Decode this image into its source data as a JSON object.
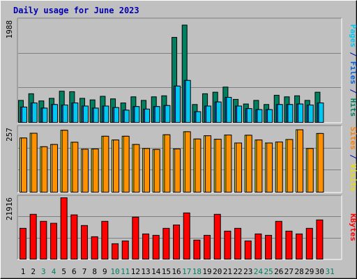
{
  "title": "Daily usage for June 2023",
  "panels": {
    "top": {
      "max_label": "1988",
      "labels": [
        {
          "text": "Pages",
          "color": "#00c8f0"
        },
        {
          "text": " / ",
          "color": "#0000b0"
        },
        {
          "text": "Files",
          "color": "#0060e0"
        },
        {
          "text": " / ",
          "color": "#0000b0"
        },
        {
          "text": "Hits",
          "color": "#008060"
        }
      ]
    },
    "middle": {
      "max_label": "257",
      "labels": [
        {
          "text": "Sites",
          "color": "#ff8000"
        },
        {
          "text": " / ",
          "color": "#0000b0"
        },
        {
          "text": "Visits",
          "color": "#e8e000"
        }
      ]
    },
    "bottom": {
      "max_label": "21916",
      "labels": [
        {
          "text": "KBytes",
          "color": "#ff0000"
        }
      ]
    }
  },
  "colors": {
    "hits": "#008060",
    "files": "#0060e0",
    "pages": "#00c8f0",
    "visits": "#ffff00",
    "sites": "#ff9000",
    "kbytes": "#ff0000",
    "weekday": "#000000",
    "weekend": "#008060"
  },
  "chart_data": {
    "type": "bar",
    "title": "Daily usage for June 2023",
    "categories": [
      "1",
      "2",
      "3",
      "4",
      "5",
      "6",
      "7",
      "8",
      "9",
      "10",
      "11",
      "12",
      "13",
      "14",
      "15",
      "16",
      "17",
      "18",
      "19",
      "20",
      "21",
      "22",
      "23",
      "24",
      "25",
      "26",
      "27",
      "28",
      "29",
      "30",
      "31"
    ],
    "weekend_days": [
      "3",
      "4",
      "10",
      "11",
      "17",
      "18",
      "24",
      "25",
      "31"
    ],
    "panels": [
      {
        "name": "hits-files-pages",
        "ylim": [
          0,
          1988
        ],
        "series": [
          {
            "name": "Hits",
            "values": [
              430,
              560,
              420,
              470,
              610,
              600,
              470,
              440,
              510,
              460,
              380,
              500,
              430,
              500,
              520,
              1660,
              1900,
              350,
              560,
              590,
              690,
              450,
              360,
              430,
              350,
              530,
              500,
              520,
              430,
              590,
              0
            ]
          },
          {
            "name": "Files",
            "values": [
              300,
              380,
              280,
              350,
              340,
              380,
              320,
              280,
              320,
              290,
              240,
              310,
              260,
              310,
              330,
              710,
              820,
              210,
              320,
              400,
              490,
              320,
              270,
              250,
              250,
              350,
              350,
              360,
              340,
              380,
              0
            ]
          },
          {
            "name": "Pages",
            "values": [
              300,
              380,
              280,
              350,
              340,
              380,
              320,
              280,
              320,
              290,
              240,
              310,
              260,
              310,
              330,
              710,
              820,
              210,
              320,
              400,
              490,
              320,
              270,
              250,
              250,
              350,
              350,
              360,
              340,
              380,
              0
            ]
          }
        ]
      },
      {
        "name": "visits-sites",
        "ylim": [
          0,
          257
        ],
        "series": [
          {
            "name": "Visits",
            "values": [
              217,
              236,
              182,
              191,
              248,
              200,
              172,
              173,
              224,
              209,
              224,
              191,
              175,
              171,
              230,
              173,
              242,
              213,
              226,
              212,
              229,
              197,
              228,
              209,
              197,
              201,
              211,
              250,
              175,
              235,
              0
            ]
          },
          {
            "name": "Sites",
            "values": [
              217,
              236,
              182,
              191,
              248,
              200,
              172,
              173,
              224,
              209,
              224,
              191,
              175,
              171,
              230,
              173,
              242,
              213,
              226,
              212,
              229,
              197,
              228,
              209,
              197,
              201,
              211,
              250,
              175,
              235,
              0
            ]
          }
        ]
      },
      {
        "name": "kbytes",
        "ylim": [
          0,
          21916
        ],
        "series": [
          {
            "name": "KBytes",
            "values": [
              11000,
              16000,
              13500,
              12800,
              21916,
              15800,
              12000,
              8000,
              13500,
              5500,
              6500,
              15000,
              9000,
              8500,
              11000,
              12200,
              16500,
              6800,
              8500,
              16000,
              10000,
              11000,
              6500,
              9000,
              8500,
              13500,
              10000,
              9000,
              11000,
              14000,
              0
            ]
          }
        ]
      }
    ]
  }
}
